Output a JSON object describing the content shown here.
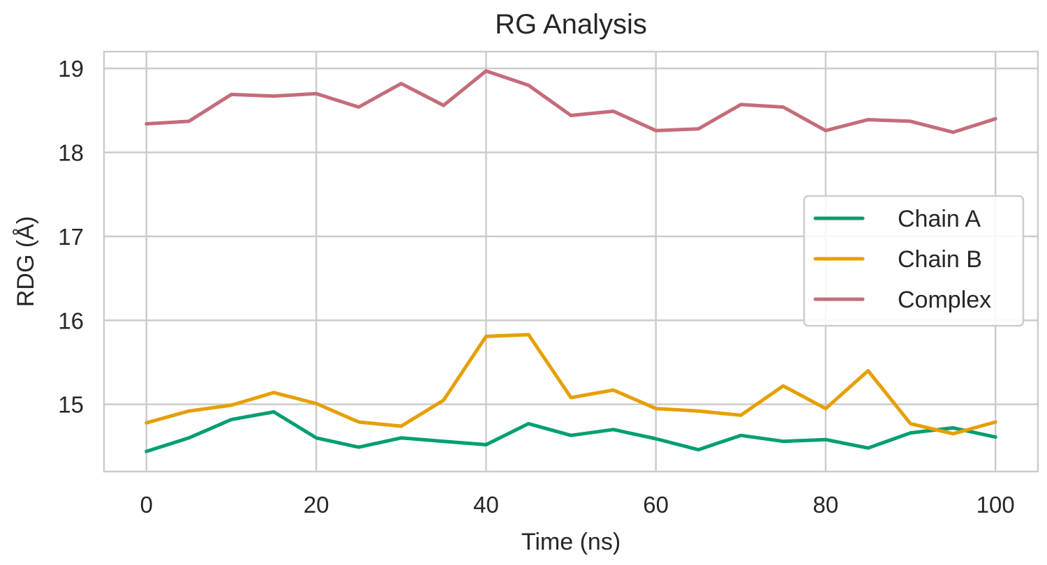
{
  "chart_data": {
    "type": "line",
    "title": "RG Analysis",
    "xlabel": "Time (ns)",
    "ylabel": "RDG (Å)",
    "x": [
      0,
      5,
      10,
      15,
      20,
      25,
      30,
      35,
      40,
      45,
      50,
      55,
      60,
      65,
      70,
      75,
      80,
      85,
      90,
      95,
      100
    ],
    "xlim": [
      -5,
      105
    ],
    "ylim": [
      14.2,
      19.2
    ],
    "xticks": [
      "0",
      "20",
      "40",
      "60",
      "80",
      "100"
    ],
    "yticks": [
      "15",
      "16",
      "17",
      "18",
      "19"
    ],
    "grid": true,
    "legend_position": "right",
    "series": [
      {
        "name": "Chain A",
        "color": "#009e73",
        "values": [
          14.44,
          14.6,
          14.82,
          14.91,
          14.6,
          14.49,
          14.6,
          14.56,
          14.52,
          14.77,
          14.63,
          14.7,
          14.59,
          14.46,
          14.63,
          14.56,
          14.58,
          14.48,
          14.66,
          14.72,
          14.61
        ]
      },
      {
        "name": "Chain B",
        "color": "#e69f00",
        "values": [
          14.78,
          14.92,
          14.99,
          15.14,
          15.01,
          14.79,
          14.74,
          15.05,
          15.81,
          15.83,
          15.08,
          15.17,
          14.95,
          14.92,
          14.87,
          15.22,
          14.95,
          15.4,
          14.77,
          14.65,
          14.79
        ]
      },
      {
        "name": "Complex",
        "color": "#c46c7a",
        "values": [
          18.34,
          18.37,
          18.69,
          18.67,
          18.7,
          18.54,
          18.82,
          18.56,
          18.97,
          18.8,
          18.44,
          18.49,
          18.26,
          18.28,
          18.57,
          18.54,
          18.26,
          18.39,
          18.37,
          18.24,
          18.4
        ]
      }
    ]
  }
}
